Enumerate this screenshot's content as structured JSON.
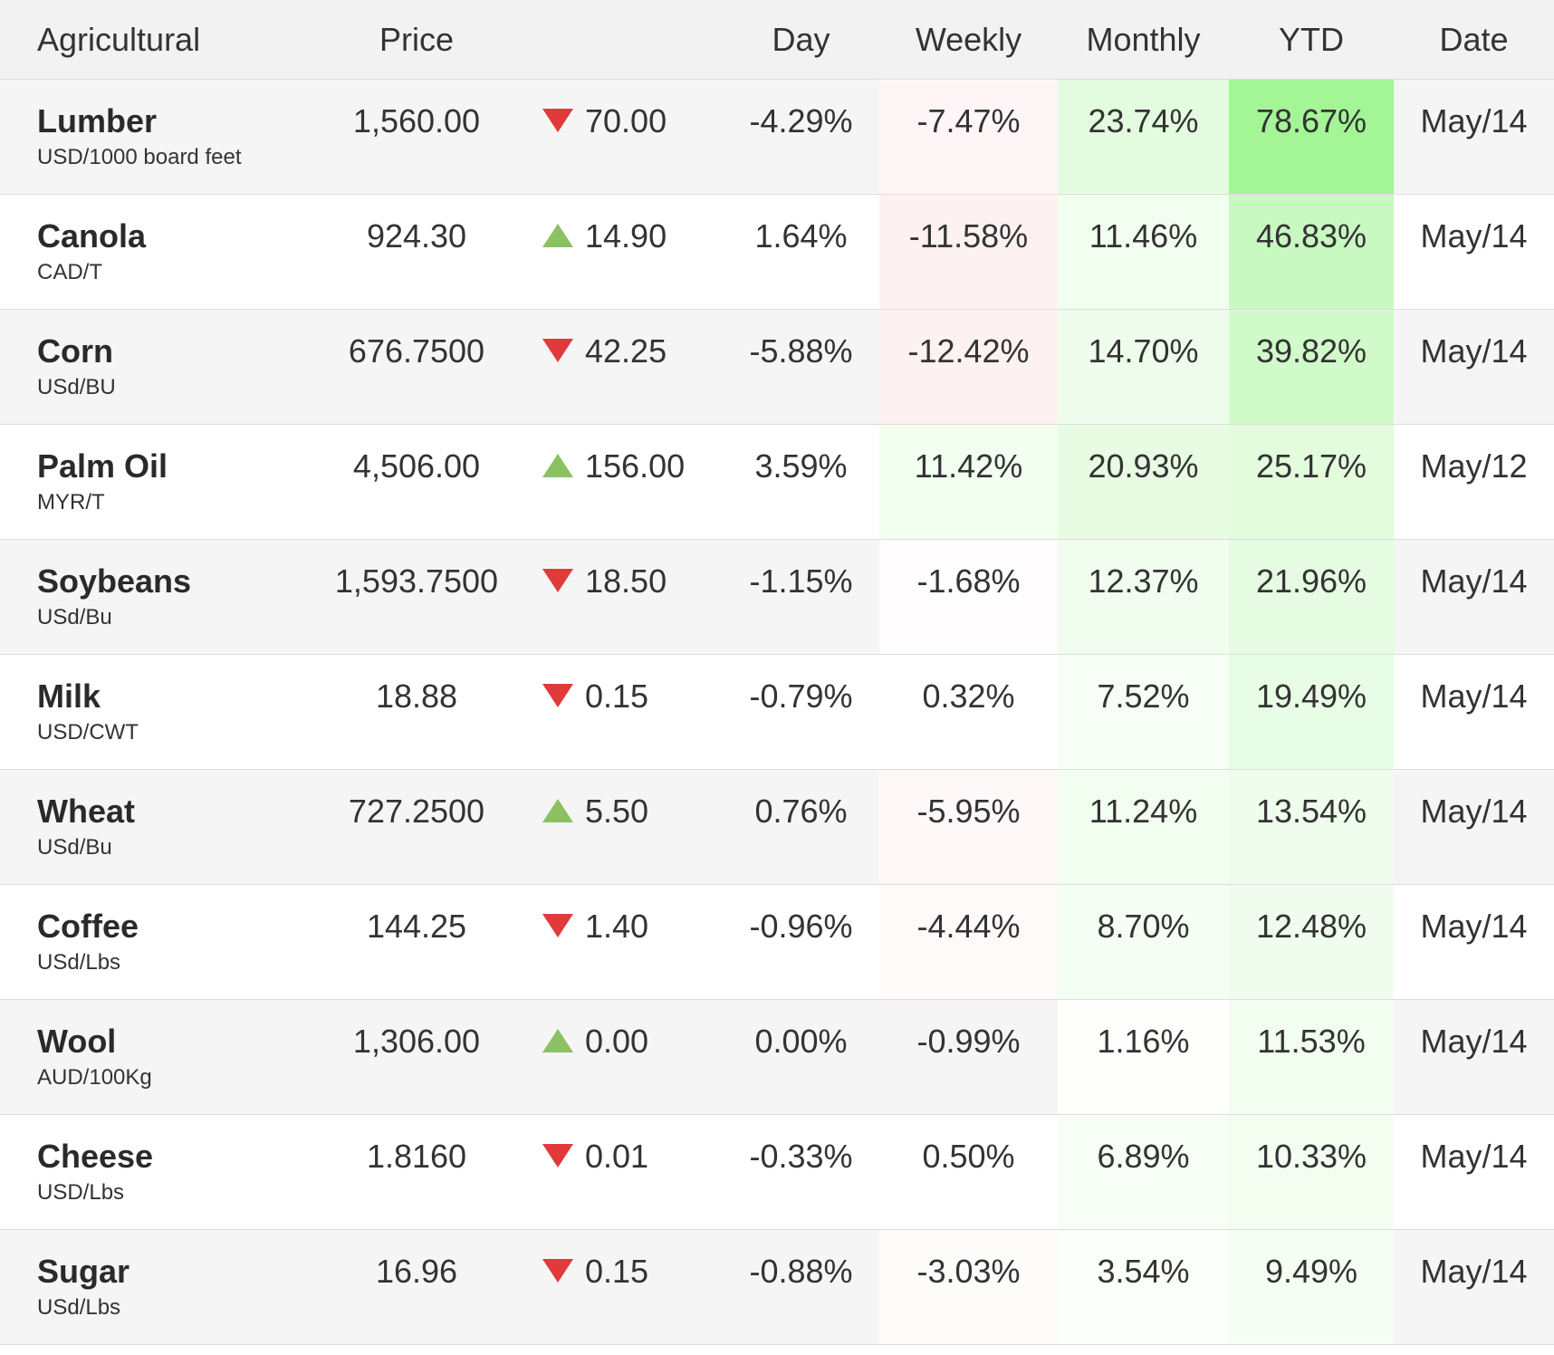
{
  "table": {
    "header": [
      "Agricultural",
      "Price",
      "Day",
      "Weekly",
      "Monthly",
      "YTD",
      "Date"
    ],
    "rows": [
      {
        "name": "Lumber",
        "unit": "USD/1000 board feet",
        "price": "1,560.00",
        "direction": "down",
        "change": "70.00",
        "day": "-4.29%",
        "weekly": "-7.47%",
        "monthly": "23.74%",
        "ytd": "78.67%",
        "date": "May/14"
      },
      {
        "name": "Canola",
        "unit": "CAD/T",
        "price": "924.30",
        "direction": "up",
        "change": "14.90",
        "day": "1.64%",
        "weekly": "-11.58%",
        "monthly": "11.46%",
        "ytd": "46.83%",
        "date": "May/14"
      },
      {
        "name": "Corn",
        "unit": "USd/BU",
        "price": "676.7500",
        "direction": "down",
        "change": "42.25",
        "day": "-5.88%",
        "weekly": "-12.42%",
        "monthly": "14.70%",
        "ytd": "39.82%",
        "date": "May/14"
      },
      {
        "name": "Palm Oil",
        "unit": "MYR/T",
        "price": "4,506.00",
        "direction": "up",
        "change": "156.00",
        "day": "3.59%",
        "weekly": "11.42%",
        "monthly": "20.93%",
        "ytd": "25.17%",
        "date": "May/12"
      },
      {
        "name": "Soybeans",
        "unit": "USd/Bu",
        "price": "1,593.7500",
        "direction": "down",
        "change": "18.50",
        "day": "-1.15%",
        "weekly": "-1.68%",
        "monthly": "12.37%",
        "ytd": "21.96%",
        "date": "May/14"
      },
      {
        "name": "Milk",
        "unit": "USD/CWT",
        "price": "18.88",
        "direction": "down",
        "change": "0.15",
        "day": "-0.79%",
        "weekly": "0.32%",
        "monthly": "7.52%",
        "ytd": "19.49%",
        "date": "May/14"
      },
      {
        "name": "Wheat",
        "unit": "USd/Bu",
        "price": "727.2500",
        "direction": "up",
        "change": "5.50",
        "day": "0.76%",
        "weekly": "-5.95%",
        "monthly": "11.24%",
        "ytd": "13.54%",
        "date": "May/14"
      },
      {
        "name": "Coffee",
        "unit": "USd/Lbs",
        "price": "144.25",
        "direction": "down",
        "change": "1.40",
        "day": "-0.96%",
        "weekly": "-4.44%",
        "monthly": "8.70%",
        "ytd": "12.48%",
        "date": "May/14"
      },
      {
        "name": "Wool",
        "unit": "AUD/100Kg",
        "price": "1,306.00",
        "direction": "up",
        "change": "0.00",
        "day": "0.00%",
        "weekly": "-0.99%",
        "monthly": "1.16%",
        "ytd": "11.53%",
        "date": "May/14"
      },
      {
        "name": "Cheese",
        "unit": "USD/Lbs",
        "price": "1.8160",
        "direction": "down",
        "change": "0.01",
        "day": "-0.33%",
        "weekly": "0.50%",
        "monthly": "6.89%",
        "ytd": "10.33%",
        "date": "May/14"
      },
      {
        "name": "Sugar",
        "unit": "USd/Lbs",
        "price": "16.96",
        "direction": "down",
        "change": "0.15",
        "day": "-0.88%",
        "weekly": "-3.03%",
        "monthly": "3.54%",
        "ytd": "9.49%",
        "date": "May/14"
      }
    ]
  }
}
